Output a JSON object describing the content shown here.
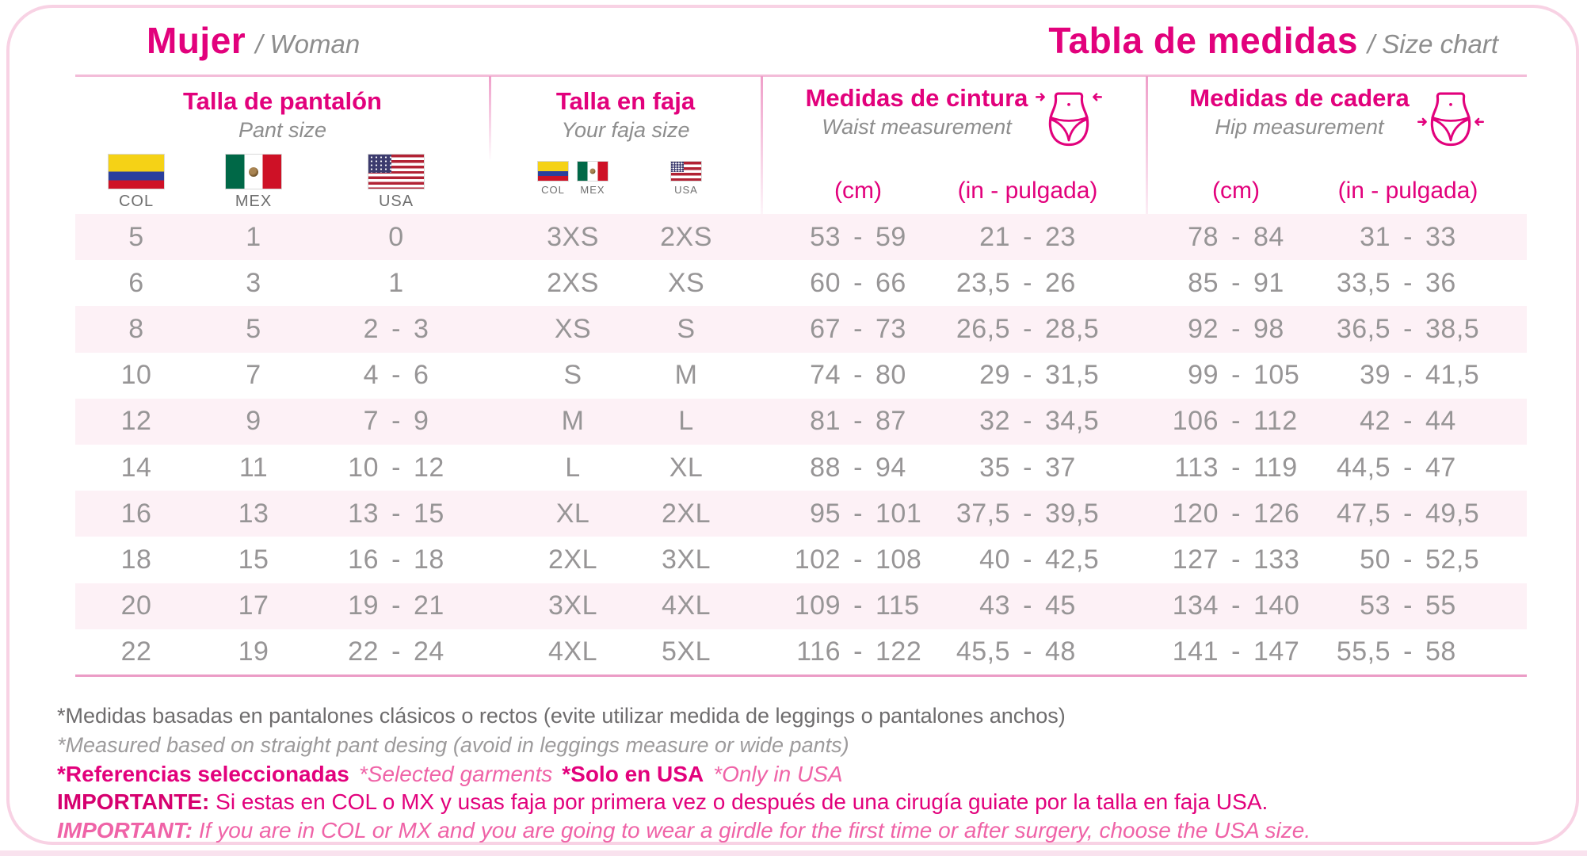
{
  "header": {
    "left_title": "Mujer",
    "left_subtitle": "/ Woman",
    "right_title": "Tabla de medidas",
    "right_subtitle": "/ Size chart"
  },
  "colors": {
    "accent": "#e2017c",
    "row_band": "#fdf1f6",
    "number_gray": "#979596"
  },
  "flag_labels": {
    "col": "COL",
    "mex": "MEX",
    "usa": "USA"
  },
  "sections": {
    "pant": {
      "title_es": "Talla de pantalón",
      "title_en": "Pant size"
    },
    "faja": {
      "title_es": "Talla en faja",
      "title_en": "Your faja size"
    },
    "waist": {
      "title_es": "Medidas de cintura",
      "title_en": "Waist measurement",
      "unit_cm": "(cm)",
      "unit_in": "(in - pulgada)"
    },
    "hip": {
      "title_es": "Medidas de cadera",
      "title_en": "Hip measurement",
      "unit_cm": "(cm)",
      "unit_in": "(in - pulgada)"
    }
  },
  "chart_data": {
    "type": "table",
    "title": "Tabla de medidas / Size chart — Mujer / Woman",
    "columns": [
      "Talla de pantalón COL",
      "Talla de pantalón MEX",
      "Talla de pantalón USA",
      "Talla en faja COL/MEX",
      "Talla en faja USA",
      "Cintura (cm)",
      "Cintura (in - pulgada)",
      "Cadera (cm)",
      "Cadera (in - pulgada)"
    ],
    "rows": [
      {
        "col": "5",
        "mex": "1",
        "usa": "0",
        "faja_colmex": "3XS",
        "faja_usa": "2XS",
        "waist_cm": "53 - 59",
        "waist_in": "21 - 23",
        "hip_cm": "78 - 84",
        "hip_in": "31 - 33"
      },
      {
        "col": "6",
        "mex": "3",
        "usa": "1",
        "faja_colmex": "2XS",
        "faja_usa": "XS",
        "waist_cm": "60 - 66",
        "waist_in": "23,5 - 26",
        "hip_cm": "85 - 91",
        "hip_in": "33,5 - 36"
      },
      {
        "col": "8",
        "mex": "5",
        "usa": "2 - 3",
        "faja_colmex": "XS",
        "faja_usa": "S",
        "waist_cm": "67 - 73",
        "waist_in": "26,5 - 28,5",
        "hip_cm": "92 - 98",
        "hip_in": "36,5 - 38,5"
      },
      {
        "col": "10",
        "mex": "7",
        "usa": "4 - 6",
        "faja_colmex": "S",
        "faja_usa": "M",
        "waist_cm": "74 - 80",
        "waist_in": "29 - 31,5",
        "hip_cm": "99 - 105",
        "hip_in": "39 - 41,5"
      },
      {
        "col": "12",
        "mex": "9",
        "usa": "7 - 9",
        "faja_colmex": "M",
        "faja_usa": "L",
        "waist_cm": "81 - 87",
        "waist_in": "32 - 34,5",
        "hip_cm": "106 - 112",
        "hip_in": "42 - 44"
      },
      {
        "col": "14",
        "mex": "11",
        "usa": "10 - 12",
        "faja_colmex": "L",
        "faja_usa": "XL",
        "waist_cm": "88 - 94",
        "waist_in": "35 - 37",
        "hip_cm": "113 - 119",
        "hip_in": "44,5 - 47"
      },
      {
        "col": "16",
        "mex": "13",
        "usa": "13 - 15",
        "faja_colmex": "XL",
        "faja_usa": "2XL",
        "waist_cm": "95 - 101",
        "waist_in": "37,5 - 39,5",
        "hip_cm": "120 - 126",
        "hip_in": "47,5 - 49,5"
      },
      {
        "col": "18",
        "mex": "15",
        "usa": "16 - 18",
        "faja_colmex": "2XL",
        "faja_usa": "3XL",
        "waist_cm": "102 - 108",
        "waist_in": "40 - 42,5",
        "hip_cm": "127 - 133",
        "hip_in": "50 - 52,5"
      },
      {
        "col": "20",
        "mex": "17",
        "usa": "19 - 21",
        "faja_colmex": "3XL",
        "faja_usa": "4XL",
        "waist_cm": "109 - 115",
        "waist_in": "43 - 45",
        "hip_cm": "134 - 140",
        "hip_in": "53 - 55"
      },
      {
        "col": "22",
        "mex": "19",
        "usa": "22 - 24",
        "faja_colmex": "4XL",
        "faja_usa": "5XL",
        "waist_cm": "116 - 122",
        "waist_in": "45,5 - 48",
        "hip_cm": "141 - 147",
        "hip_in": "55,5 - 58"
      }
    ]
  },
  "footnotes": {
    "line1": "*Medidas basadas en pantalones clásicos o rectos (evite utilizar medida de leggings o pantalones anchos)",
    "line2": "*Measured based on straight pant desing (avoid in leggings measure or wide pants)",
    "line3": {
      "seg1": "*Referencias seleccionadas",
      "seg2": "*Selected garments",
      "seg3": "*Solo en USA",
      "seg4": "*Only in USA"
    },
    "line4": {
      "label": "IMPORTANTE:",
      "text": "Si estas en COL o MX y usas faja por primera vez o después de una cirugía guiate por la talla en faja USA."
    },
    "line5": {
      "label": "IMPORTANT:",
      "text": "If you are in COL or MX and you are going to wear a girdle for the first time or after surgery, choose the USA size."
    }
  }
}
